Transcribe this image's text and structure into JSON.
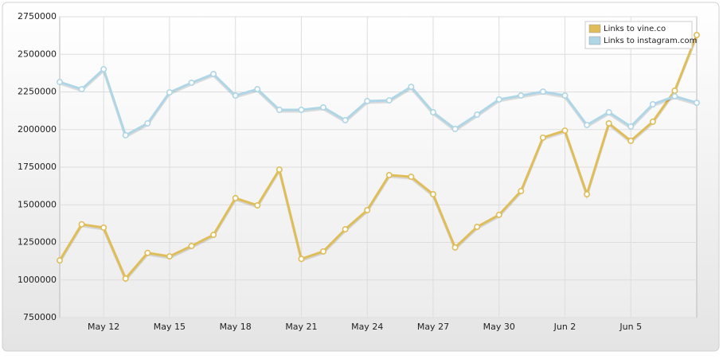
{
  "chart_data": {
    "type": "line",
    "categories": [
      null,
      null,
      "May 12",
      null,
      null,
      "May 15",
      null,
      null,
      "May 18",
      null,
      null,
      "May 21",
      null,
      null,
      "May 24",
      null,
      null,
      "May 27",
      null,
      null,
      "May 30",
      null,
      null,
      "Jun 2",
      null,
      null,
      "Jun 5",
      null,
      null,
      null
    ],
    "series": [
      {
        "name": "Links to vine.co",
        "color": "#dfbd58",
        "values": [
          1130000,
          1370000,
          1348000,
          1010000,
          1180000,
          1157000,
          1226000,
          1300000,
          1544000,
          1496000,
          1734000,
          1140000,
          1190000,
          1337000,
          1464000,
          1697000,
          1686000,
          1570000,
          1216000,
          1353000,
          1433000,
          1591000,
          1946000,
          1993000,
          1570000,
          2041000,
          1925000,
          2052000,
          2258000,
          2628000
        ]
      },
      {
        "name": "Links to instagram.com",
        "color": "#aed6e6",
        "values": [
          2316000,
          2268000,
          2401000,
          1962000,
          2041000,
          2247000,
          2311000,
          2369000,
          2226000,
          2268000,
          2131000,
          2131000,
          2147000,
          2062000,
          2189000,
          2194000,
          2284000,
          2115000,
          2004000,
          2099000,
          2200000,
          2226000,
          2252000,
          2226000,
          2030000,
          2115000,
          2020000,
          2168000,
          2221000,
          2178000
        ]
      }
    ],
    "ylim": [
      750000,
      2750000
    ],
    "yticks": [
      750000,
      1000000,
      1250000,
      1500000,
      1750000,
      2000000,
      2250000,
      2500000,
      2750000
    ],
    "grid": true,
    "legend": "top-right"
  }
}
